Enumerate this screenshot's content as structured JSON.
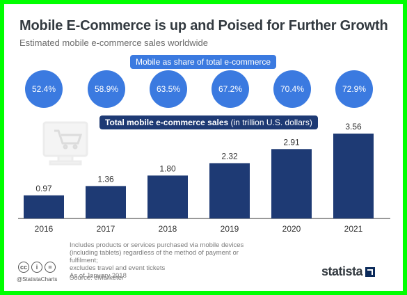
{
  "header": {
    "title": "Mobile E-Commerce is up and Poised for Further Growth",
    "subtitle": "Estimated mobile e-commerce sales worldwide"
  },
  "share_section": {
    "label": "Mobile as share of total e-commerce",
    "values": [
      "52.4%",
      "58.9%",
      "63.5%",
      "67.2%",
      "70.4%",
      "72.9%"
    ]
  },
  "sales_section": {
    "label_bold": "Total mobile e-commerce sales",
    "label_light": " (in trillion U.S. dollars)"
  },
  "chart_data": {
    "type": "bar",
    "categories": [
      "2016",
      "2017",
      "2018",
      "2019",
      "2020",
      "2021"
    ],
    "values": [
      0.97,
      1.36,
      1.8,
      2.32,
      2.91,
      3.56
    ],
    "value_labels": [
      "0.97",
      "1.36",
      "1.80",
      "2.32",
      "2.91",
      "3.56"
    ],
    "share_of_total_ecommerce_percent": [
      52.4,
      58.9,
      63.5,
      67.2,
      70.4,
      72.9
    ],
    "title": "Mobile E-Commerce is up and Poised for Further Growth",
    "subtitle": "Estimated mobile e-commerce sales worldwide",
    "xlabel": "",
    "ylabel": "",
    "ylim": [
      0,
      3.56
    ],
    "grid": false,
    "legend": "none",
    "colors": {
      "bar": "#1e3a74",
      "circle": "#3b7ae0",
      "axis": "#333333"
    }
  },
  "footer": {
    "notes": [
      "Includes products or services purchased via mobile devices",
      "(including tablets) regardless of the method of payment or fulfilment;",
      "excludes travel and event tickets",
      "As of January 2018"
    ],
    "source": "Source: eMarketer",
    "handle": "@StatistaCharts",
    "license_icons": [
      "cc",
      "i",
      "="
    ],
    "brand": "statista"
  }
}
